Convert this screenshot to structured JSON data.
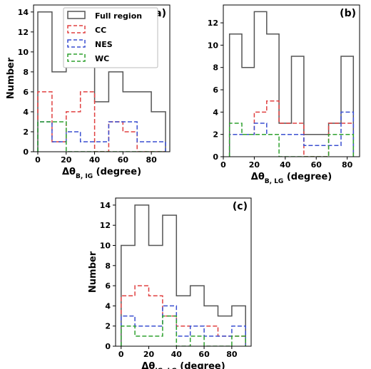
{
  "chart_data": [
    {
      "type": "bar",
      "panel_label": "(a)",
      "xlabel_main": "Δθ",
      "xlabel_sub": "B, IG",
      "xlabel_unit": " (degree)",
      "ylabel": "Number",
      "xlim": [
        -3,
        93
      ],
      "ylim": [
        0,
        14.7
      ],
      "xticks": [
        0,
        20,
        40,
        60,
        80
      ],
      "yticks": [
        0,
        2,
        4,
        6,
        8,
        10,
        12,
        14
      ],
      "bin_edges": [
        0,
        10,
        20,
        30,
        40,
        50,
        60,
        70,
        80,
        90
      ],
      "legend": {
        "position": "top-right",
        "entries": [
          "Full region",
          "CC",
          "NES",
          "WC"
        ]
      },
      "series": [
        {
          "name": "Full region",
          "color": "#555555",
          "values": [
            14,
            8,
            9,
            9,
            5,
            8,
            6,
            6,
            4
          ]
        },
        {
          "name": "CC",
          "color": "#e04040",
          "values": [
            6,
            1,
            4,
            6,
            0,
            3,
            2,
            0,
            0
          ]
        },
        {
          "name": "NES",
          "color": "#3a4fd0",
          "values": [
            3,
            1,
            2,
            1,
            1,
            3,
            3,
            1,
            1
          ]
        },
        {
          "name": "WC",
          "color": "#2ea12e",
          "values": [
            3,
            3,
            0,
            0,
            0,
            0,
            0,
            0,
            0
          ]
        }
      ]
    },
    {
      "type": "bar",
      "panel_label": "(b)",
      "xlabel_main": "Δθ",
      "xlabel_sub": "B, LG",
      "xlabel_unit": " (degree)",
      "ylabel": "",
      "xlim": [
        0,
        88
      ],
      "ylim": [
        0,
        13.6
      ],
      "xticks": [
        0,
        20,
        40,
        60,
        80
      ],
      "yticks": [
        0,
        2,
        4,
        6,
        8,
        10,
        12
      ],
      "bin_edges": [
        4,
        12,
        20,
        28,
        36,
        44,
        52,
        60,
        68,
        76,
        84
      ],
      "series": [
        {
          "name": "Full region",
          "color": "#555555",
          "values": [
            11,
            8,
            13,
            11,
            3,
            9,
            2,
            2,
            3,
            9
          ]
        },
        {
          "name": "CC",
          "color": "#e04040",
          "values": [
            2,
            2,
            4,
            5,
            3,
            3,
            0,
            0,
            3,
            3
          ]
        },
        {
          "name": "NES",
          "color": "#3a4fd0",
          "values": [
            2,
            2,
            3,
            2,
            2,
            2,
            1,
            1,
            1,
            4
          ]
        },
        {
          "name": "WC",
          "color": "#2ea12e",
          "values": [
            3,
            2,
            2,
            2,
            0,
            0,
            0,
            0,
            2,
            2
          ]
        }
      ]
    },
    {
      "type": "bar",
      "panel_label": "(c)",
      "xlabel_main": "Δθ",
      "xlabel_sub": "IG, LG",
      "xlabel_unit": " (degree)",
      "ylabel": "Number",
      "xlim": [
        -4,
        94
      ],
      "ylim": [
        0,
        14.7
      ],
      "xticks": [
        0,
        20,
        40,
        60,
        80
      ],
      "yticks": [
        0,
        2,
        4,
        6,
        8,
        10,
        12,
        14
      ],
      "bin_edges": [
        0,
        10,
        20,
        30,
        40,
        50,
        60,
        70,
        80,
        90
      ],
      "series": [
        {
          "name": "Full region",
          "color": "#555555",
          "values": [
            10,
            14,
            10,
            13,
            5,
            6,
            4,
            3,
            4
          ]
        },
        {
          "name": "CC",
          "color": "#e04040",
          "values": [
            5,
            6,
            5,
            3,
            2,
            2,
            2,
            1,
            1
          ]
        },
        {
          "name": "NES",
          "color": "#3a4fd0",
          "values": [
            3,
            2,
            2,
            4,
            1,
            2,
            1,
            1,
            2
          ]
        },
        {
          "name": "WC",
          "color": "#2ea12e",
          "values": [
            2,
            1,
            1,
            3,
            0,
            1,
            0,
            0,
            1
          ]
        }
      ]
    }
  ]
}
